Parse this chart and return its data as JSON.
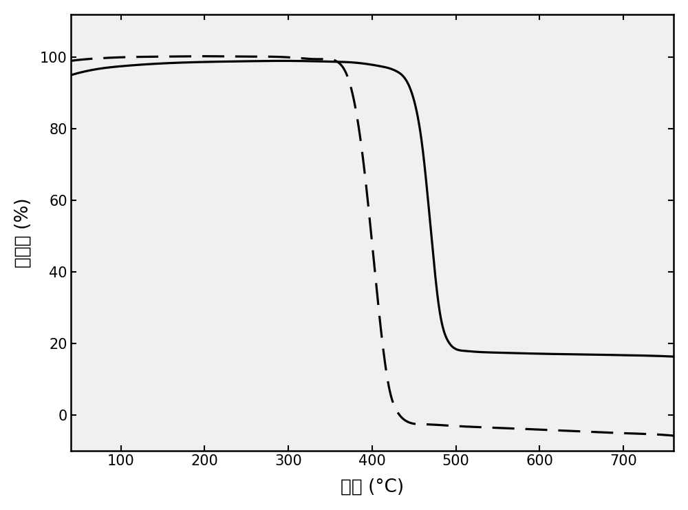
{
  "xlabel": "温度 (°C)",
  "ylabel": "重量比 (%)",
  "xlim": [
    40,
    760
  ],
  "ylim": [
    -10,
    112
  ],
  "yticks": [
    0,
    20,
    40,
    60,
    80,
    100
  ],
  "xticks": [
    100,
    200,
    300,
    400,
    500,
    600,
    700
  ],
  "background_color": "#ffffff",
  "plot_bg_color": "#f0f0f0",
  "line_color": "#000000",
  "linewidth_solid": 2.3,
  "linewidth_dashed": 2.3,
  "font_size_label": 19,
  "font_size_tick": 15,
  "solid_x": [
    40,
    60,
    80,
    100,
    150,
    200,
    250,
    300,
    350,
    380,
    410,
    430,
    450,
    460,
    470,
    480,
    490,
    500,
    510,
    520,
    550,
    600,
    650,
    700,
    750,
    760
  ],
  "solid_y": [
    95.0,
    96.2,
    97.0,
    97.5,
    98.3,
    98.7,
    98.9,
    99.0,
    98.8,
    98.5,
    97.5,
    96.0,
    88.0,
    75.0,
    52.0,
    30.0,
    21.0,
    18.5,
    18.0,
    17.8,
    17.5,
    17.2,
    17.0,
    16.8,
    16.5,
    16.4
  ],
  "dashed_x": [
    40,
    60,
    80,
    100,
    150,
    200,
    250,
    300,
    340,
    360,
    370,
    380,
    390,
    400,
    410,
    420,
    430,
    440,
    460,
    500,
    550,
    600,
    650,
    700,
    750,
    760
  ],
  "dashed_y": [
    99.0,
    99.5,
    99.8,
    100.0,
    100.2,
    100.3,
    100.2,
    100.0,
    99.5,
    98.5,
    95.0,
    86.0,
    70.0,
    48.0,
    25.0,
    8.0,
    1.0,
    -1.5,
    -2.5,
    -3.0,
    -3.5,
    -4.0,
    -4.5,
    -5.0,
    -5.5,
    -5.7
  ]
}
